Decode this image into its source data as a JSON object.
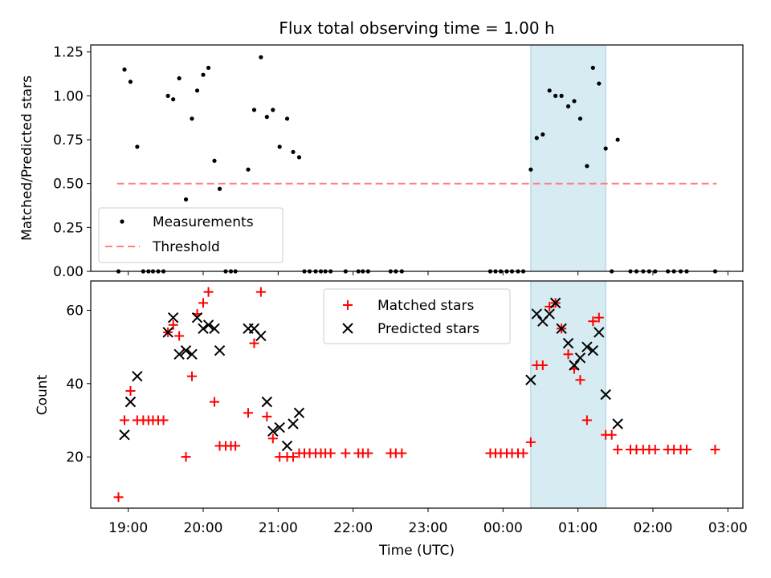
{
  "chart_data": [
    {
      "type": "scatter",
      "title": "Flux total observing time = 1.00 h",
      "xlabel": "",
      "ylabel": "Matched/Predicted stars",
      "x_unit": "hours since 00:00 UTC",
      "xlim": [
        -5.5,
        3.2
      ],
      "ylim": [
        0.0,
        1.29
      ],
      "y_ticks": [
        0.0,
        0.25,
        0.5,
        0.75,
        1.0,
        1.25
      ],
      "y_tick_labels": [
        "0.00",
        "0.25",
        "0.50",
        "0.75",
        "1.00",
        "1.25"
      ],
      "highlight": {
        "x0": 0.37,
        "x1": 1.37,
        "color": "#add8e6"
      },
      "threshold": {
        "name": "Threshold",
        "value": 0.5,
        "x0": -5.15,
        "x1": 2.85,
        "color": "#ff8080"
      },
      "legend": {
        "location": "lower-left",
        "entries": [
          "Measurements",
          "Threshold"
        ]
      },
      "series": [
        {
          "name": "Measurements",
          "color": "#000000",
          "points": [
            [
              -5.13,
              0.0
            ],
            [
              -5.05,
              1.15
            ],
            [
              -4.97,
              1.08
            ],
            [
              -4.88,
              0.71
            ],
            [
              -4.8,
              0.0
            ],
            [
              -4.73,
              0.0
            ],
            [
              -4.67,
              0.0
            ],
            [
              -4.6,
              0.0
            ],
            [
              -4.53,
              0.0
            ],
            [
              -4.47,
              1.0
            ],
            [
              -4.4,
              0.98
            ],
            [
              -4.32,
              1.1
            ],
            [
              -4.23,
              0.41
            ],
            [
              -4.15,
              0.87
            ],
            [
              -4.08,
              1.03
            ],
            [
              -4.0,
              1.12
            ],
            [
              -3.93,
              1.16
            ],
            [
              -3.85,
              0.63
            ],
            [
              -3.78,
              0.47
            ],
            [
              -3.7,
              0.0
            ],
            [
              -3.63,
              0.0
            ],
            [
              -3.57,
              0.0
            ],
            [
              -3.4,
              0.58
            ],
            [
              -3.32,
              0.92
            ],
            [
              -3.23,
              1.22
            ],
            [
              -3.15,
              0.88
            ],
            [
              -3.07,
              0.92
            ],
            [
              -2.98,
              0.71
            ],
            [
              -2.88,
              0.87
            ],
            [
              -2.8,
              0.68
            ],
            [
              -2.72,
              0.65
            ],
            [
              -2.65,
              0.0
            ],
            [
              -2.58,
              0.0
            ],
            [
              -2.5,
              0.0
            ],
            [
              -2.43,
              0.0
            ],
            [
              -2.37,
              0.0
            ],
            [
              -2.3,
              0.0
            ],
            [
              -2.1,
              0.0
            ],
            [
              -1.93,
              0.0
            ],
            [
              -1.87,
              0.0
            ],
            [
              -1.8,
              0.0
            ],
            [
              -1.5,
              0.0
            ],
            [
              -1.43,
              0.0
            ],
            [
              -1.35,
              0.0
            ],
            [
              -0.17,
              0.0
            ],
            [
              -0.1,
              0.0
            ],
            [
              -0.03,
              0.0
            ],
            [
              0.05,
              0.0
            ],
            [
              0.12,
              0.0
            ],
            [
              0.2,
              0.0
            ],
            [
              0.27,
              0.0
            ],
            [
              0.37,
              0.58
            ],
            [
              0.45,
              0.76
            ],
            [
              0.53,
              0.78
            ],
            [
              0.62,
              1.03
            ],
            [
              0.7,
              1.0
            ],
            [
              0.78,
              1.0
            ],
            [
              0.87,
              0.94
            ],
            [
              0.95,
              0.97
            ],
            [
              1.03,
              0.87
            ],
            [
              1.12,
              0.6
            ],
            [
              1.2,
              1.16
            ],
            [
              1.28,
              1.07
            ],
            [
              1.37,
              0.7
            ],
            [
              1.45,
              0.0
            ],
            [
              1.53,
              0.75
            ],
            [
              1.7,
              0.0
            ],
            [
              1.78,
              0.0
            ],
            [
              1.87,
              0.0
            ],
            [
              1.95,
              0.0
            ],
            [
              2.03,
              0.0
            ],
            [
              2.2,
              0.0
            ],
            [
              2.28,
              0.0
            ],
            [
              2.37,
              0.0
            ],
            [
              2.45,
              0.0
            ],
            [
              2.83,
              0.0
            ]
          ]
        }
      ]
    },
    {
      "type": "scatter",
      "title": "",
      "xlabel": "Time (UTC)",
      "ylabel": "Count",
      "x_unit": "hours since 00:00 UTC",
      "xlim": [
        -5.5,
        3.2
      ],
      "ylim": [
        6,
        68
      ],
      "y_ticks": [
        20,
        40,
        60
      ],
      "y_tick_labels": [
        "20",
        "40",
        "60"
      ],
      "x_ticks": [
        -5,
        -4,
        -3,
        -2,
        -1,
        0,
        1,
        2,
        3
      ],
      "x_tick_labels": [
        "19:00",
        "20:00",
        "21:00",
        "22:00",
        "23:00",
        "00:00",
        "01:00",
        "02:00",
        "03:00"
      ],
      "highlight": {
        "x0": 0.37,
        "x1": 1.37,
        "color": "#add8e6"
      },
      "legend": {
        "location": "upper-center",
        "entries": [
          "Matched stars",
          "Predicted stars"
        ]
      },
      "series": [
        {
          "name": "Matched stars",
          "marker": "plus",
          "color": "#ff0000",
          "points": [
            [
              -5.13,
              9
            ],
            [
              -5.05,
              30
            ],
            [
              -4.97,
              38
            ],
            [
              -4.88,
              30
            ],
            [
              -4.8,
              30
            ],
            [
              -4.73,
              30
            ],
            [
              -4.67,
              30
            ],
            [
              -4.6,
              30
            ],
            [
              -4.53,
              30
            ],
            [
              -4.47,
              54
            ],
            [
              -4.4,
              56
            ],
            [
              -4.32,
              53
            ],
            [
              -4.23,
              20
            ],
            [
              -4.15,
              42
            ],
            [
              -4.08,
              59
            ],
            [
              -4.0,
              62
            ],
            [
              -3.93,
              65
            ],
            [
              -3.85,
              35
            ],
            [
              -3.78,
              23
            ],
            [
              -3.7,
              23
            ],
            [
              -3.63,
              23
            ],
            [
              -3.57,
              23
            ],
            [
              -3.4,
              32
            ],
            [
              -3.32,
              51
            ],
            [
              -3.23,
              65
            ],
            [
              -3.15,
              31
            ],
            [
              -3.07,
              25
            ],
            [
              -2.98,
              20
            ],
            [
              -2.88,
              20
            ],
            [
              -2.8,
              20
            ],
            [
              -2.72,
              21
            ],
            [
              -2.65,
              21
            ],
            [
              -2.58,
              21
            ],
            [
              -2.5,
              21
            ],
            [
              -2.43,
              21
            ],
            [
              -2.37,
              21
            ],
            [
              -2.3,
              21
            ],
            [
              -2.1,
              21
            ],
            [
              -1.93,
              21
            ],
            [
              -1.87,
              21
            ],
            [
              -1.8,
              21
            ],
            [
              -1.5,
              21
            ],
            [
              -1.43,
              21
            ],
            [
              -1.35,
              21
            ],
            [
              -0.17,
              21
            ],
            [
              -0.1,
              21
            ],
            [
              -0.03,
              21
            ],
            [
              0.05,
              21
            ],
            [
              0.12,
              21
            ],
            [
              0.2,
              21
            ],
            [
              0.27,
              21
            ],
            [
              0.37,
              24
            ],
            [
              0.45,
              45
            ],
            [
              0.53,
              45
            ],
            [
              0.62,
              61
            ],
            [
              0.7,
              62
            ],
            [
              0.78,
              55
            ],
            [
              0.87,
              48
            ],
            [
              0.95,
              44
            ],
            [
              1.03,
              41
            ],
            [
              1.12,
              30
            ],
            [
              1.2,
              57
            ],
            [
              1.28,
              58
            ],
            [
              1.37,
              26
            ],
            [
              1.45,
              26
            ],
            [
              1.53,
              22
            ],
            [
              1.7,
              22
            ],
            [
              1.78,
              22
            ],
            [
              1.87,
              22
            ],
            [
              1.95,
              22
            ],
            [
              2.03,
              22
            ],
            [
              2.2,
              22
            ],
            [
              2.28,
              22
            ],
            [
              2.37,
              22
            ],
            [
              2.45,
              22
            ],
            [
              2.83,
              22
            ]
          ]
        },
        {
          "name": "Predicted stars",
          "marker": "x",
          "color": "#000000",
          "points": [
            [
              -5.05,
              26
            ],
            [
              -4.97,
              35
            ],
            [
              -4.88,
              42
            ],
            [
              -4.47,
              54
            ],
            [
              -4.4,
              58
            ],
            [
              -4.32,
              48
            ],
            [
              -4.23,
              49
            ],
            [
              -4.15,
              48
            ],
            [
              -4.08,
              58
            ],
            [
              -4.0,
              55
            ],
            [
              -3.93,
              56
            ],
            [
              -3.85,
              55
            ],
            [
              -3.78,
              49
            ],
            [
              -3.4,
              55
            ],
            [
              -3.32,
              55
            ],
            [
              -3.23,
              53
            ],
            [
              -3.15,
              35
            ],
            [
              -3.07,
              27
            ],
            [
              -2.98,
              28
            ],
            [
              -2.88,
              23
            ],
            [
              -2.8,
              29
            ],
            [
              -2.72,
              32
            ],
            [
              0.37,
              41
            ],
            [
              0.45,
              59
            ],
            [
              0.53,
              57
            ],
            [
              0.62,
              59
            ],
            [
              0.7,
              62
            ],
            [
              0.78,
              55
            ],
            [
              0.87,
              51
            ],
            [
              0.95,
              45
            ],
            [
              1.03,
              47
            ],
            [
              1.12,
              50
            ],
            [
              1.2,
              49
            ],
            [
              1.28,
              54
            ],
            [
              1.37,
              37
            ],
            [
              1.53,
              29
            ]
          ]
        }
      ]
    }
  ]
}
